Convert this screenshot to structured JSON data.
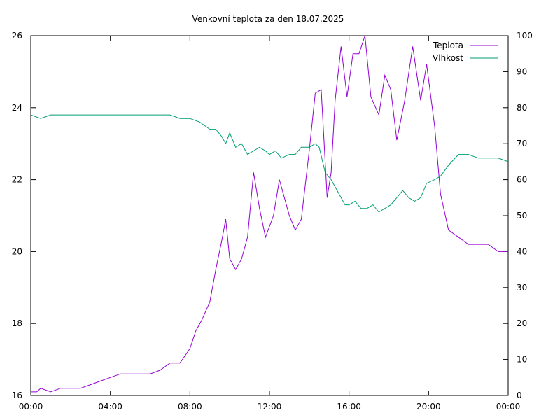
{
  "chart_data": {
    "type": "line",
    "title": "Venkovní teplota za den 18.07.2025",
    "x_axis": {
      "ticks": [
        "00:00",
        "04:00",
        "08:00",
        "12:00",
        "16:00",
        "20:00",
        "00:00"
      ],
      "range_hours": [
        0,
        24
      ]
    },
    "y_left": {
      "range": [
        16,
        26
      ],
      "ticks": [
        "16",
        "18",
        "20",
        "22",
        "24",
        "26"
      ]
    },
    "y_right": {
      "range": [
        0,
        100
      ],
      "ticks": [
        "0",
        "10",
        "20",
        "30",
        "40",
        "50",
        "60",
        "70",
        "80",
        "90",
        "100"
      ]
    },
    "legend": {
      "placement": "top-right"
    },
    "grid": false,
    "series": [
      {
        "name": "Teplota",
        "axis": "left",
        "color": "#9400d3",
        "x": [
          0,
          0.3,
          0.5,
          1.0,
          1.5,
          2.0,
          2.5,
          3.0,
          3.5,
          4.0,
          4.5,
          5.0,
          5.5,
          6.0,
          6.5,
          7.0,
          7.5,
          8.0,
          8.3,
          8.6,
          9.0,
          9.3,
          9.6,
          9.8,
          10.0,
          10.3,
          10.6,
          10.9,
          11.2,
          11.5,
          11.8,
          12.2,
          12.5,
          13.0,
          13.3,
          13.6,
          14.0,
          14.3,
          14.6,
          14.9,
          15.1,
          15.3,
          15.6,
          15.9,
          16.2,
          16.5,
          16.8,
          17.1,
          17.5,
          17.8,
          18.1,
          18.4,
          18.8,
          19.2,
          19.6,
          19.9,
          20.3,
          20.6,
          21.0,
          21.5,
          22.0,
          22.5,
          23.0,
          23.5,
          24.0
        ],
        "y": [
          16.1,
          16.1,
          16.2,
          16.1,
          16.2,
          16.2,
          16.2,
          16.3,
          16.4,
          16.5,
          16.6,
          16.6,
          16.6,
          16.6,
          16.7,
          16.9,
          16.9,
          17.3,
          17.8,
          18.1,
          18.6,
          19.5,
          20.3,
          20.9,
          19.8,
          19.5,
          19.8,
          20.4,
          22.2,
          21.2,
          20.4,
          21.0,
          22.0,
          21.0,
          20.6,
          20.9,
          22.8,
          24.4,
          24.5,
          21.5,
          22.2,
          24.2,
          25.7,
          24.3,
          25.5,
          25.5,
          26.0,
          24.3,
          23.8,
          24.9,
          24.5,
          23.1,
          24.2,
          25.7,
          24.2,
          25.2,
          23.5,
          21.6,
          20.6,
          20.4,
          20.2,
          20.2,
          20.2,
          20.0,
          20.0
        ]
      },
      {
        "name": "Vlhkost",
        "axis": "right",
        "color": "#009e73",
        "x": [
          0,
          0.5,
          1.0,
          1.5,
          2.0,
          2.5,
          3.0,
          3.5,
          4.0,
          4.5,
          5.0,
          5.5,
          6.0,
          6.5,
          7.0,
          7.5,
          8.0,
          8.5,
          9.0,
          9.3,
          9.6,
          9.8,
          10.0,
          10.3,
          10.6,
          10.9,
          11.2,
          11.5,
          11.8,
          12.0,
          12.3,
          12.6,
          13.0,
          13.3,
          13.6,
          14.0,
          14.3,
          14.5,
          14.8,
          15.1,
          15.3,
          15.5,
          15.8,
          16.0,
          16.3,
          16.6,
          16.9,
          17.2,
          17.5,
          17.8,
          18.1,
          18.4,
          18.7,
          19.0,
          19.3,
          19.6,
          19.9,
          20.3,
          20.6,
          21.0,
          21.5,
          22.0,
          22.5,
          23.0,
          23.5,
          24.0
        ],
        "y": [
          78,
          77,
          78,
          78,
          78,
          78,
          78,
          78,
          78,
          78,
          78,
          78,
          78,
          78,
          78,
          77,
          77,
          76,
          74,
          74,
          72,
          70,
          73,
          69,
          70,
          67,
          68,
          69,
          68,
          67,
          68,
          66,
          67,
          67,
          69,
          69,
          70,
          69,
          62,
          60,
          58,
          56,
          53,
          53,
          54,
          52,
          52,
          53,
          51,
          52,
          53,
          55,
          57,
          55,
          54,
          55,
          59,
          60,
          61,
          64,
          67,
          67,
          66,
          66,
          66,
          65
        ]
      }
    ]
  }
}
